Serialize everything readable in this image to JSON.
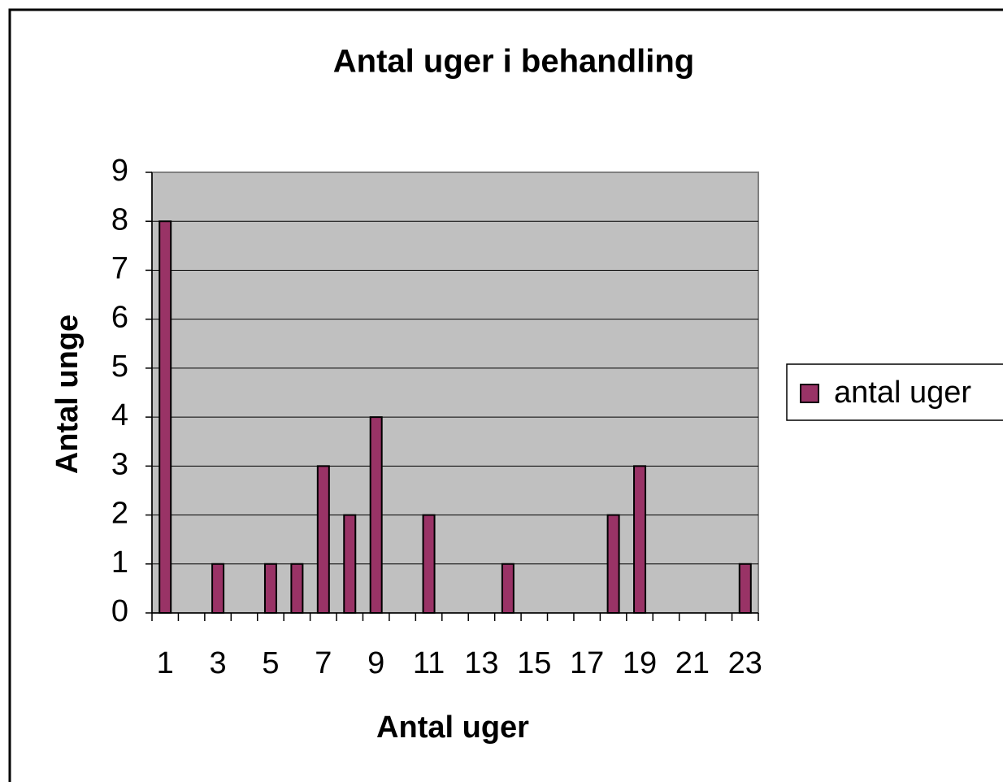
{
  "chart_data": {
    "type": "bar",
    "title": "Antal uger i behandling",
    "x_label": "Antal uger",
    "y_label": "Antal unge",
    "categories": [
      1,
      null,
      3,
      null,
      5,
      null,
      7,
      null,
      9,
      null,
      11,
      null,
      13,
      null,
      15,
      null,
      17,
      null,
      19,
      null,
      21,
      null,
      23
    ],
    "series": [
      {
        "name": "antal uger",
        "color": "#993366",
        "values": [
          8,
          0,
          1,
          0,
          1,
          1,
          3,
          2,
          4,
          0,
          2,
          0,
          0,
          1,
          0,
          0,
          0,
          2,
          3,
          0,
          0,
          0,
          1
        ]
      }
    ],
    "ylim": [
      0,
      9
    ],
    "yticks": [
      0,
      1,
      2,
      3,
      4,
      5,
      6,
      7,
      8,
      9
    ],
    "grid": true,
    "legend": "right"
  }
}
